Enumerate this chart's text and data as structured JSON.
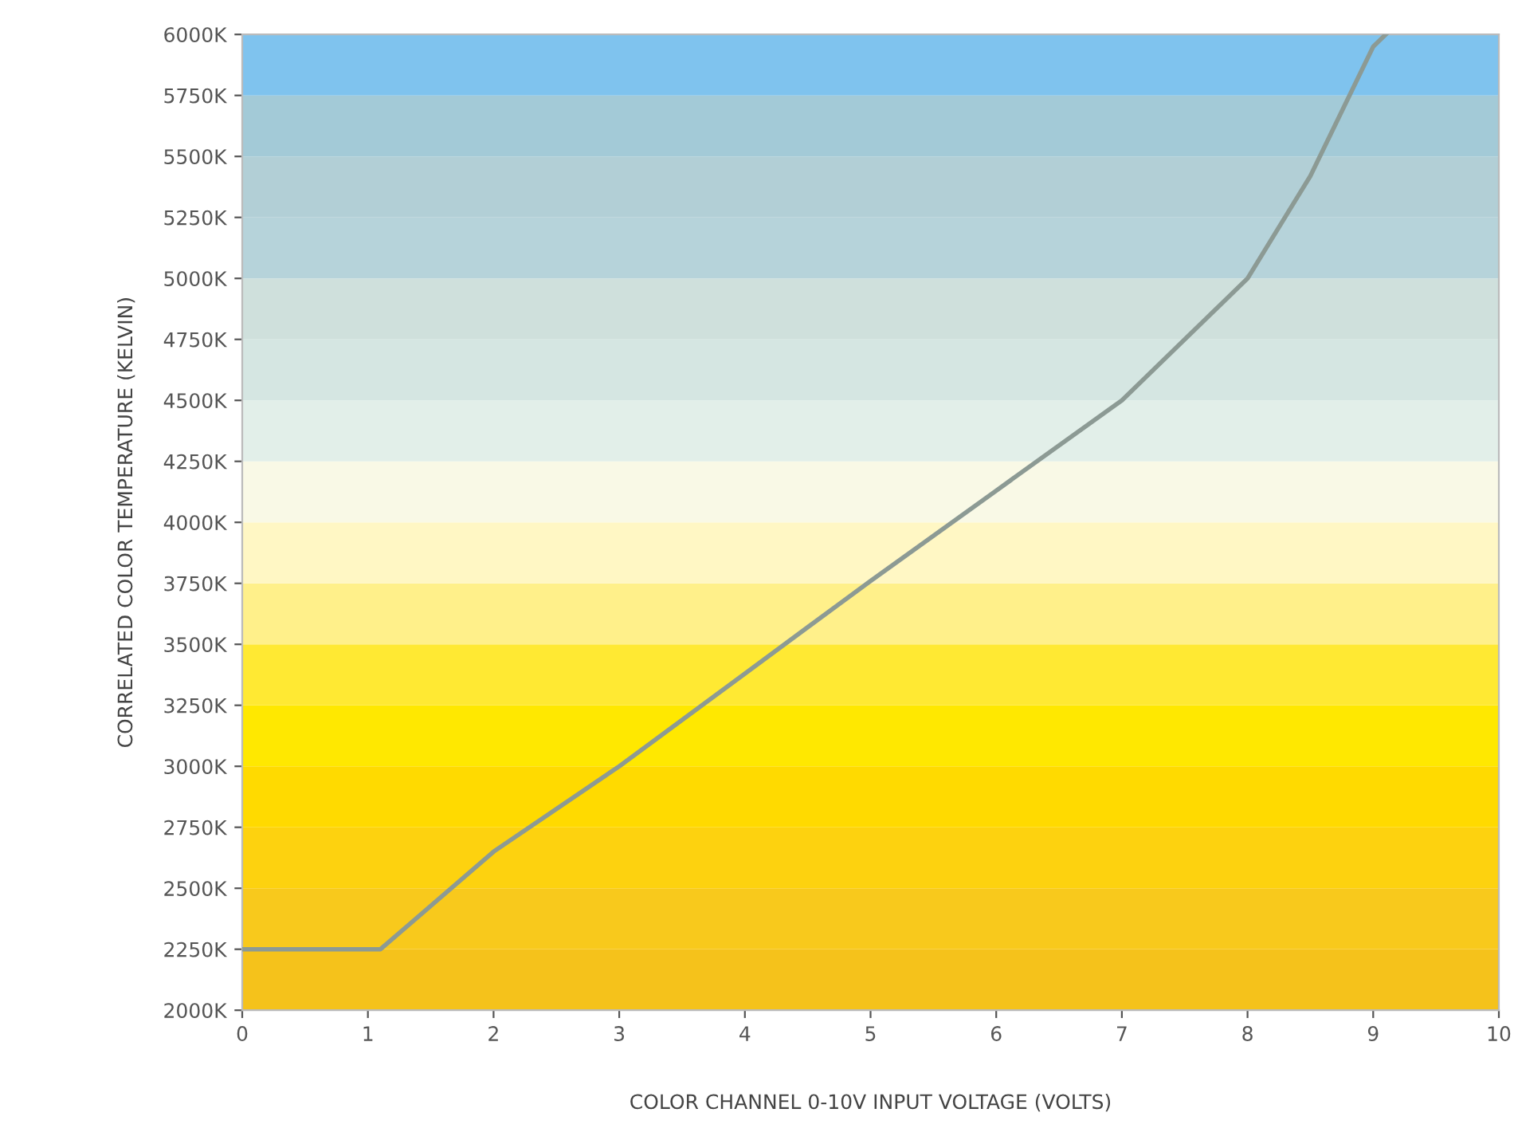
{
  "chart_data": {
    "type": "line",
    "xlabel": "COLOR CHANNEL 0-10V INPUT VOLTAGE (VOLTS)",
    "ylabel": "CORRELATED COLOR TEMPERATURE (KELVIN)",
    "x": [
      0,
      1.1,
      2,
      3,
      4,
      5,
      6,
      7,
      8,
      8.5,
      9,
      9.1
    ],
    "series": [
      {
        "color": "#8c9a94",
        "values": [
          2250,
          2250,
          2650,
          3000,
          3380,
          3760,
          4130,
          4500,
          5000,
          5420,
          5950,
          6000
        ]
      }
    ],
    "xlim": [
      0,
      10
    ],
    "xticks": [
      0,
      1,
      2,
      3,
      4,
      5,
      6,
      7,
      8,
      9,
      10
    ],
    "ylim": [
      2000,
      6000
    ],
    "yticks": [
      {
        "value": 2000,
        "label": "2000K"
      },
      {
        "value": 2250,
        "label": "2250K"
      },
      {
        "value": 2500,
        "label": "2500K"
      },
      {
        "value": 2750,
        "label": "2750K"
      },
      {
        "value": 3000,
        "label": "3000K"
      },
      {
        "value": 3250,
        "label": "3250K"
      },
      {
        "value": 3500,
        "label": "3500K"
      },
      {
        "value": 3750,
        "label": "3750K"
      },
      {
        "value": 4000,
        "label": "4000K"
      },
      {
        "value": 4250,
        "label": "4250K"
      },
      {
        "value": 4500,
        "label": "4500K"
      },
      {
        "value": 4750,
        "label": "4750K"
      },
      {
        "value": 5000,
        "label": "5000K"
      },
      {
        "value": 5250,
        "label": "5250K"
      },
      {
        "value": 5500,
        "label": "5500K"
      },
      {
        "value": 5750,
        "label": "5750K"
      },
      {
        "value": 6000,
        "label": "6000K"
      }
    ],
    "bands": [
      {
        "axis": "y",
        "from": 2000,
        "to": 2250,
        "color": "#f5c21b"
      },
      {
        "axis": "y",
        "from": 2250,
        "to": 2500,
        "color": "#f8c91c"
      },
      {
        "axis": "y",
        "from": 2500,
        "to": 2750,
        "color": "#fdd20f"
      },
      {
        "axis": "y",
        "from": 2750,
        "to": 3000,
        "color": "#ffda00"
      },
      {
        "axis": "y",
        "from": 3000,
        "to": 3250,
        "color": "#ffe800"
      },
      {
        "axis": "y",
        "from": 3250,
        "to": 3500,
        "color": "#ffe933"
      },
      {
        "axis": "y",
        "from": 3500,
        "to": 3750,
        "color": "#fff08a"
      },
      {
        "axis": "y",
        "from": 3750,
        "to": 4000,
        "color": "#fff7c4"
      },
      {
        "axis": "y",
        "from": 4000,
        "to": 4250,
        "color": "#f9f9e6"
      },
      {
        "axis": "y",
        "from": 4250,
        "to": 4500,
        "color": "#e2efe9"
      },
      {
        "axis": "y",
        "from": 4500,
        "to": 4750,
        "color": "#d5e6e2"
      },
      {
        "axis": "y",
        "from": 4750,
        "to": 5000,
        "color": "#cfe0dc"
      },
      {
        "axis": "y",
        "from": 5000,
        "to": 5250,
        "color": "#b6d3da"
      },
      {
        "axis": "y",
        "from": 5250,
        "to": 5500,
        "color": "#b2cfd6"
      },
      {
        "axis": "y",
        "from": 5500,
        "to": 5750,
        "color": "#a3cad7"
      },
      {
        "axis": "y",
        "from": 5750,
        "to": 6000,
        "color": "#7fc3ee"
      }
    ],
    "grid": false,
    "marker": "none",
    "line_style": "solid"
  }
}
